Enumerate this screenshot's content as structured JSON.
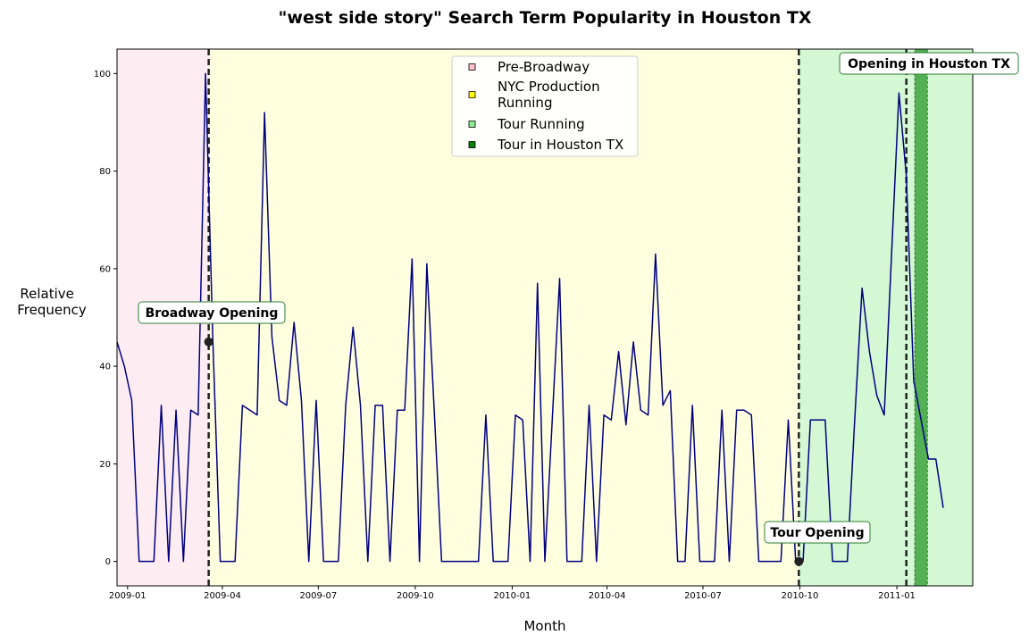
{
  "chart_data": {
    "type": "line",
    "title": "\"west side story\" Search Term Popularity in Houston TX",
    "xlabel": "Month",
    "ylabel_lines": [
      "Relative",
      "Frequency"
    ],
    "xlim": [
      "2008-12-22",
      "2011-03-14"
    ],
    "ylim": [
      -5,
      105
    ],
    "x_ticks": [
      "2009-01-01",
      "2009-04-01",
      "2009-07-01",
      "2009-10-01",
      "2010-01-01",
      "2010-04-01",
      "2010-07-01",
      "2010-10-01",
      "2011-01-01"
    ],
    "x_tick_labels": [
      "2009-01",
      "2009-04",
      "2009-07",
      "2009-10",
      "2010-01",
      "2010-04",
      "2010-07",
      "2010-10",
      "2011-01"
    ],
    "y_ticks": [
      0,
      20,
      40,
      60,
      80,
      100
    ],
    "y_tick_labels": [
      "0",
      "20",
      "40",
      "60",
      "80",
      "100"
    ],
    "grid": false,
    "line_color": "#000080",
    "series": [
      {
        "start": "2008-12-22",
        "step_days": 7,
        "values": [
          45,
          40,
          33,
          0,
          0,
          0,
          32,
          0,
          31,
          0,
          31,
          30,
          100,
          45,
          0,
          0,
          0,
          32,
          31,
          30,
          92,
          46,
          33,
          32,
          49,
          33,
          0,
          33,
          0,
          0,
          0,
          32,
          48,
          32,
          0,
          32,
          32,
          0,
          31,
          31,
          62,
          0,
          61,
          31,
          0,
          0,
          0,
          0,
          0,
          0,
          30,
          0,
          0,
          0,
          30,
          29,
          0,
          57,
          0,
          29,
          58,
          0,
          0,
          0,
          32,
          0,
          30,
          29,
          43,
          28,
          45,
          31,
          30,
          63,
          32,
          35,
          0,
          0,
          32,
          0,
          0,
          0,
          31,
          0,
          31,
          31,
          30,
          0,
          0,
          0,
          0,
          29,
          0,
          0,
          29,
          29,
          29,
          0,
          0,
          0,
          29,
          56,
          43,
          34,
          30,
          63,
          96,
          79,
          37,
          29,
          21,
          21,
          11
        ]
      }
    ],
    "shaded_regions": [
      {
        "label": "Pre-Broadway",
        "start": "2008-12-22",
        "end": "2009-03-19",
        "color": "#fce4ec",
        "opacity": 0.65
      },
      {
        "label": "NYC Production\nRunning",
        "start": "2009-03-19",
        "end": "2010-09-30",
        "color": "#ffff99",
        "opacity": 0.3
      },
      {
        "label": "Tour Running",
        "start": "2010-09-30",
        "end": "2011-03-14",
        "color": "#90ee90",
        "opacity": 0.4
      },
      {
        "label": "Tour in Houston TX",
        "start": "2011-01-18",
        "end": "2011-01-30",
        "color": "#008000",
        "opacity": 0.6
      }
    ],
    "vlines": [
      "2009-03-19",
      "2010-09-30",
      "2011-01-10"
    ],
    "annotations": [
      {
        "text": "Broadway Opening",
        "x": "2009-03-19",
        "y": 45
      },
      {
        "text": "Tour Opening",
        "x": "2010-09-30",
        "y": 0
      },
      {
        "text": "Opening in Houston TX",
        "x": "2011-01-10",
        "y": null
      }
    ],
    "markers": [
      {
        "x": "2009-03-19",
        "y": 45
      },
      {
        "x": "2010-09-30",
        "y": 0
      }
    ],
    "legend": {
      "placement": "top-center",
      "entries": [
        {
          "label_lines": [
            "Pre-Broadway"
          ],
          "color": "#ffc0cb"
        },
        {
          "label_lines": [
            "NYC Production",
            "Running"
          ],
          "color": "#ffff00"
        },
        {
          "label_lines": [
            "Tour Running"
          ],
          "color": "#90ee90"
        },
        {
          "label_lines": [
            "Tour in Houston TX"
          ],
          "color": "#008000"
        }
      ]
    }
  }
}
